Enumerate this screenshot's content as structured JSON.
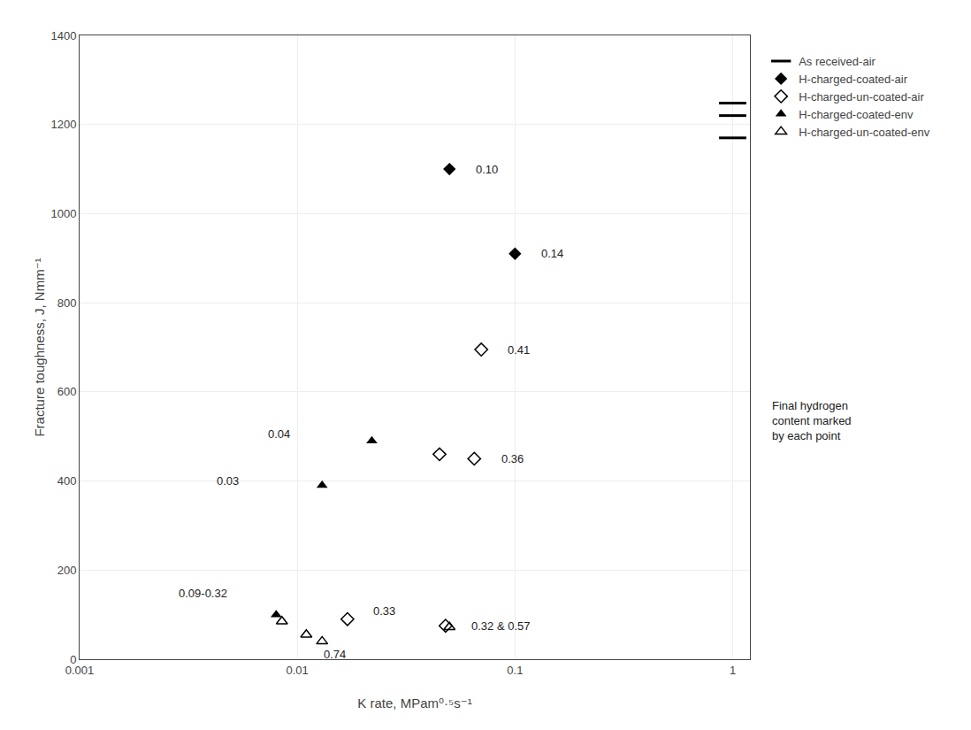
{
  "chart_data": {
    "type": "scatter",
    "xlabel": "K rate, MPam⁰·⁵s⁻¹",
    "ylabel": "Fracture toughness, J, Nmm⁻¹",
    "log": "x",
    "xlim": [
      0.001,
      1.2
    ],
    "xticks": [
      0.001,
      0.01,
      0.1,
      1
    ],
    "ylim": [
      0,
      1400
    ],
    "yticks": [
      0,
      200,
      400,
      600,
      800,
      1000,
      1200,
      1400
    ],
    "grid": true,
    "legend": "outside right",
    "series": [
      {
        "name": "As received-air",
        "color": "#000000",
        "marker": "line-ew",
        "x": [
          1.0,
          1.0,
          1.0
        ],
        "values": [
          1248,
          1220,
          1170
        ]
      },
      {
        "name": "H-charged-coated-air",
        "color": "#000000",
        "marker": "diamond",
        "x": [
          0.05,
          0.1
        ],
        "values": [
          1100,
          910
        ]
      },
      {
        "name": "H-charged-un-coated-air",
        "color": "#000000",
        "marker": "diamond-open",
        "x": [
          0.07,
          0.045,
          0.065,
          0.017,
          0.048
        ],
        "values": [
          695,
          460,
          450,
          90,
          75
        ]
      },
      {
        "name": "H-charged-coated-env",
        "color": "#000000",
        "marker": "triangle-up",
        "x": [
          0.008,
          0.013,
          0.022
        ],
        "values": [
          100,
          390,
          490
        ]
      },
      {
        "name": "H-charged-un-coated-env",
        "color": "#000000",
        "marker": "triangle-up-open",
        "x": [
          0.0085,
          0.011,
          0.05,
          0.013
        ],
        "values": [
          85,
          55,
          72,
          40
        ]
      }
    ],
    "annotations": [
      {
        "text": "0.10",
        "x": 0.065,
        "y": 1100
      },
      {
        "text": "0.14",
        "x": 0.13,
        "y": 910
      },
      {
        "text": "0.41",
        "x": 0.091,
        "y": 695
      },
      {
        "text": "0.36",
        "x": 0.085,
        "y": 450
      },
      {
        "text": "0.33",
        "x": 0.022,
        "y": 108
      },
      {
        "text": "0.32 & 0.57",
        "x": 0.062,
        "y": 75
      },
      {
        "text": "0.09-0.32",
        "x": 0.0028,
        "y": 148
      },
      {
        "text": "0.03",
        "x": 0.0042,
        "y": 400
      },
      {
        "text": "0.04",
        "x": 0.0072,
        "y": 505
      },
      {
        "text": "0.74",
        "x": 0.013,
        "y": 10
      },
      {
        "text": "Final hydrogen\ncontent marked\nby each point"
      }
    ]
  }
}
